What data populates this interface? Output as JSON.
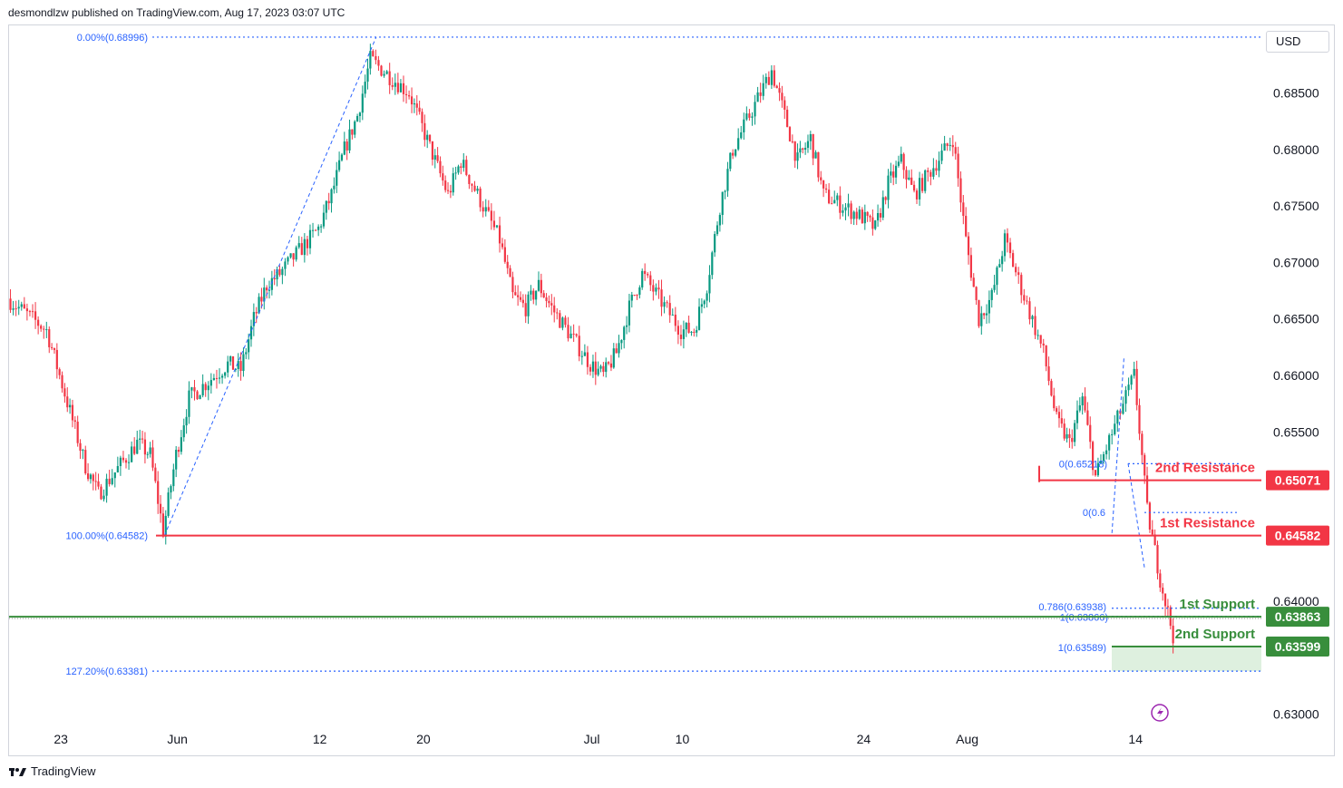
{
  "header": {
    "publisher_line": "desmondlzw published on TradingView.com, Aug 17, 2023 03:07 UTC"
  },
  "currency": "USD",
  "footer": {
    "brand": "TradingView",
    "logo_icon": "tradingview-logo-icon"
  },
  "colors": {
    "up": "#089981",
    "down": "#f23645",
    "resistance": "#f23645",
    "support": "#388e3c",
    "fib": "#2962ff"
  },
  "chart_data": {
    "type": "candlestick",
    "y_axis": {
      "min": 0.629,
      "max": 0.691,
      "ticks": [
        "0.68500",
        "0.68000",
        "0.67500",
        "0.67000",
        "0.66500",
        "0.66000",
        "0.65500",
        "0.64000",
        "0.63000"
      ],
      "tick_values": [
        0.685,
        0.68,
        0.675,
        0.67,
        0.665,
        0.66,
        0.655,
        0.64,
        0.63
      ]
    },
    "x_axis": {
      "start": "2023-05-19",
      "end": "2023-08-24",
      "ticks": [
        {
          "label": "23",
          "date": "2023-05-23"
        },
        {
          "label": "Jun",
          "date": "2023-06-01"
        },
        {
          "label": "12",
          "date": "2023-06-12"
        },
        {
          "label": "20",
          "date": "2023-06-20"
        },
        {
          "label": "Jul",
          "date": "2023-07-03"
        },
        {
          "label": "10",
          "date": "2023-07-10"
        },
        {
          "label": "24",
          "date": "2023-07-24"
        },
        {
          "label": "Aug",
          "date": "2023-08-01"
        },
        {
          "label": "14",
          "date": "2023-08-14"
        }
      ]
    },
    "price_path": [
      [
        "2023-05-19",
        0.6668
      ],
      [
        "2023-05-22",
        0.664
      ],
      [
        "2023-05-24",
        0.656
      ],
      [
        "2023-05-25",
        0.652
      ],
      [
        "2023-05-26",
        0.6495
      ],
      [
        "2023-05-29",
        0.654
      ],
      [
        "2023-05-30",
        0.653
      ],
      [
        "2023-05-31",
        0.6462
      ],
      [
        "2023-06-01",
        0.653
      ],
      [
        "2023-06-02",
        0.658
      ],
      [
        "2023-06-05",
        0.661
      ],
      [
        "2023-06-06",
        0.6605
      ],
      [
        "2023-06-07",
        0.665
      ],
      [
        "2023-06-08",
        0.668
      ],
      [
        "2023-06-09",
        0.669
      ],
      [
        "2023-06-12",
        0.673
      ],
      [
        "2023-06-13",
        0.676
      ],
      [
        "2023-06-14",
        0.68
      ],
      [
        "2023-06-15",
        0.683
      ],
      [
        "2023-06-16",
        0.688
      ],
      [
        "2023-06-19",
        0.685
      ],
      [
        "2023-06-20",
        0.682
      ],
      [
        "2023-06-21",
        0.679
      ],
      [
        "2023-06-22",
        0.676
      ],
      [
        "2023-06-23",
        0.679
      ],
      [
        "2023-06-26",
        0.672
      ],
      [
        "2023-06-27",
        0.667
      ],
      [
        "2023-06-28",
        0.666
      ],
      [
        "2023-06-29",
        0.668
      ],
      [
        "2023-06-30",
        0.666
      ],
      [
        "2023-07-03",
        0.661
      ],
      [
        "2023-07-04",
        0.66
      ],
      [
        "2023-07-05",
        0.662
      ],
      [
        "2023-07-06",
        0.666
      ],
      [
        "2023-07-07",
        0.669
      ],
      [
        "2023-07-10",
        0.664
      ],
      [
        "2023-07-11",
        0.664
      ],
      [
        "2023-07-12",
        0.668
      ],
      [
        "2023-07-13",
        0.675
      ],
      [
        "2023-07-14",
        0.68
      ],
      [
        "2023-07-17",
        0.687
      ],
      [
        "2023-07-18",
        0.683
      ],
      [
        "2023-07-19",
        0.679
      ],
      [
        "2023-07-20",
        0.681
      ],
      [
        "2023-07-21",
        0.676
      ],
      [
        "2023-07-24",
        0.674
      ],
      [
        "2023-07-25",
        0.673
      ],
      [
        "2023-07-26",
        0.677
      ],
      [
        "2023-07-27",
        0.679
      ],
      [
        "2023-07-28",
        0.676
      ],
      [
        "2023-07-31",
        0.681
      ],
      [
        "2023-08-01",
        0.672
      ],
      [
        "2023-08-02",
        0.665
      ],
      [
        "2023-08-03",
        0.667
      ],
      [
        "2023-08-04",
        0.672
      ],
      [
        "2023-08-07",
        0.662
      ],
      [
        "2023-08-08",
        0.656
      ],
      [
        "2023-08-09",
        0.654
      ],
      [
        "2023-08-10",
        0.658
      ],
      [
        "2023-08-11",
        0.651
      ],
      [
        "2023-08-14",
        0.66
      ],
      [
        "2023-08-15",
        0.648
      ],
      [
        "2023-08-16",
        0.642
      ],
      [
        "2023-08-17",
        0.637
      ]
    ],
    "fibonacci_main": [
      {
        "label": "0.00%(0.68996)",
        "value": 0.68996
      },
      {
        "label": "100.00%(0.64582)",
        "value": 0.64582
      },
      {
        "label": "127.20%(0.63381)",
        "value": 0.63381
      }
    ],
    "fibonacci_minor": [
      {
        "label": "0(0.65218)",
        "value": 0.65218,
        "shown_text": "0(0.65218)"
      },
      {
        "label": "0(0.64786)",
        "value": 0.64786,
        "shown_text": "0(0.6"
      },
      {
        "label": "0.786(0.63938)",
        "value": 0.63938
      },
      {
        "label": "1(0.63866)",
        "value": 0.63866
      },
      {
        "label": "1(0.63589)",
        "value": 0.63589
      }
    ],
    "levels": [
      {
        "name": "2nd Resistance",
        "value": 0.65071,
        "label": "0.65071",
        "kind": "resistance"
      },
      {
        "name": "1st Resistance",
        "value": 0.64582,
        "label": "0.64582",
        "kind": "resistance"
      },
      {
        "name": "1st Support",
        "value": 0.63863,
        "label": "0.63863",
        "kind": "support"
      },
      {
        "name": "2nd Support",
        "value": 0.63599,
        "label": "0.63599",
        "kind": "support"
      }
    ]
  }
}
